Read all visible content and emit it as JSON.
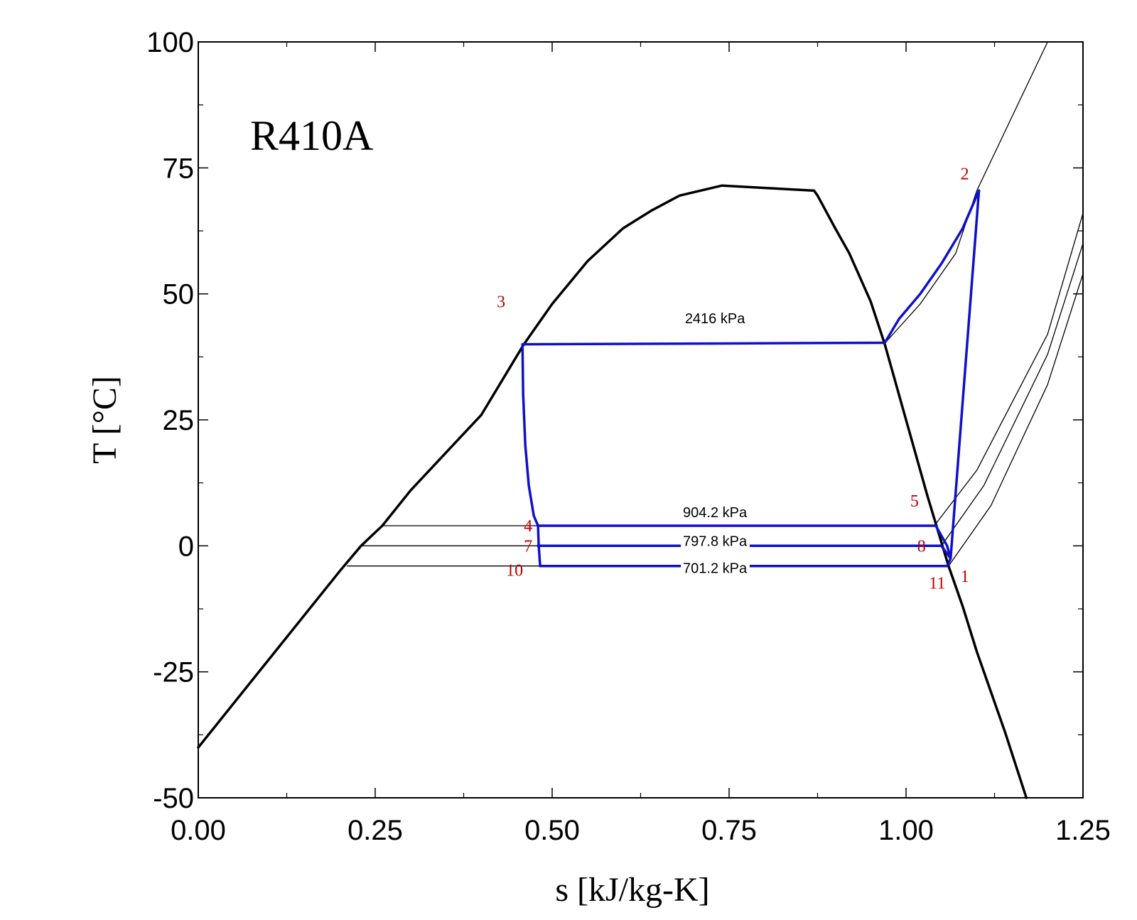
{
  "chart_data": {
    "type": "line",
    "title": "",
    "fluid_label": "R410A",
    "xlabel": "s [kJ/kg-K]",
    "ylabel": "T [°C]",
    "xlim": [
      0,
      1.25
    ],
    "ylim": [
      -50,
      100
    ],
    "xticks": [
      "0.00",
      "0.25",
      "0.50",
      "0.75",
      "1.00",
      "1.25"
    ],
    "yticks": [
      "-50",
      "-25",
      "0",
      "25",
      "50",
      "75",
      "100"
    ],
    "grid": false,
    "colors": {
      "saturation": "#000000",
      "cycle": "#1010c8",
      "isobar": "#000000",
      "state_label": "#c00000"
    },
    "saturation_dome": {
      "x": [
        0.0,
        0.1,
        0.2,
        0.23,
        0.26,
        0.3,
        0.4,
        0.46,
        0.5,
        0.55,
        0.6,
        0.64,
        0.68,
        0.74,
        0.87,
        0.875,
        0.9,
        0.92,
        0.95,
        0.97,
        1.0,
        1.03,
        1.06,
        1.08,
        1.1,
        1.14,
        1.17
      ],
      "y": [
        -40,
        -22.5,
        -5,
        0,
        4,
        11,
        26,
        40,
        48,
        56.5,
        63,
        66.5,
        69.5,
        71.5,
        70.5,
        69.5,
        63,
        58,
        48.5,
        40,
        25,
        10,
        -4,
        -12,
        -21,
        -37,
        -50
      ]
    },
    "isobars": [
      {
        "name": "2416 kPa",
        "x": [
          0.46,
          0.97,
          1.02,
          1.07,
          1.1,
          1.2
        ],
        "y": [
          40,
          40.2,
          48,
          58,
          70.5,
          100
        ]
      },
      {
        "name": "904.2 kPa",
        "x": [
          0.26,
          0.48,
          1.04,
          1.1,
          1.2,
          1.25
        ],
        "y": [
          4,
          4,
          4,
          15,
          42,
          66
        ]
      },
      {
        "name": "797.8 kPa",
        "x": [
          0.23,
          0.48,
          1.05,
          1.11,
          1.2,
          1.25
        ],
        "y": [
          0,
          0,
          0,
          12,
          38,
          60
        ]
      },
      {
        "name": "701.2 kPa",
        "x": [
          0.21,
          0.48,
          1.06,
          1.12,
          1.2,
          1.25
        ],
        "y": [
          -4,
          -4,
          -4,
          8,
          32,
          54
        ]
      }
    ],
    "cycle": {
      "segments": [
        {
          "x": [
            1.063,
            1.103
          ],
          "y": [
            -2.5,
            70.5
          ]
        },
        {
          "x": [
            1.103,
            1.08,
            1.05,
            1.02,
            0.99,
            0.97
          ],
          "y": [
            70.5,
            63,
            56,
            50,
            45,
            40.3
          ]
        },
        {
          "x": [
            0.97,
            0.458
          ],
          "y": [
            40.3,
            40
          ]
        },
        {
          "x": [
            0.458,
            0.459,
            0.462,
            0.467,
            0.474,
            0.48
          ],
          "y": [
            40,
            30,
            20,
            12,
            6,
            4
          ]
        },
        {
          "x": [
            0.48,
            1.042
          ],
          "y": [
            4,
            4
          ]
        },
        {
          "x": [
            1.042,
            1.058,
            1.063
          ],
          "y": [
            4,
            0,
            -2.5
          ]
        },
        {
          "x": [
            0.48,
            1.05
          ],
          "y": [
            0,
            0
          ]
        },
        {
          "x": [
            1.05,
            1.063
          ],
          "y": [
            0,
            -2.5
          ]
        },
        {
          "x": [
            0.48,
            0.481,
            0.483
          ],
          "y": [
            4,
            0,
            -4
          ]
        },
        {
          "x": [
            0.483,
            1.058
          ],
          "y": [
            -4,
            -4
          ]
        },
        {
          "x": [
            1.058,
            1.063
          ],
          "y": [
            -4,
            -2.5
          ]
        }
      ]
    },
    "state_points": [
      {
        "label": "1",
        "x": 1.063,
        "y": -2.5
      },
      {
        "label": "2",
        "x": 1.103,
        "y": 70.5
      },
      {
        "label": "3",
        "x": 0.458,
        "y": 40
      },
      {
        "label": "4",
        "x": 0.48,
        "y": 4
      },
      {
        "label": "5",
        "x": 1.042,
        "y": 4
      },
      {
        "label": "7",
        "x": 0.48,
        "y": 0
      },
      {
        "label": "8",
        "x": 1.05,
        "y": 0
      },
      {
        "label": "10",
        "x": 0.483,
        "y": -4
      },
      {
        "label": "11",
        "x": 1.058,
        "y": -4
      }
    ]
  }
}
